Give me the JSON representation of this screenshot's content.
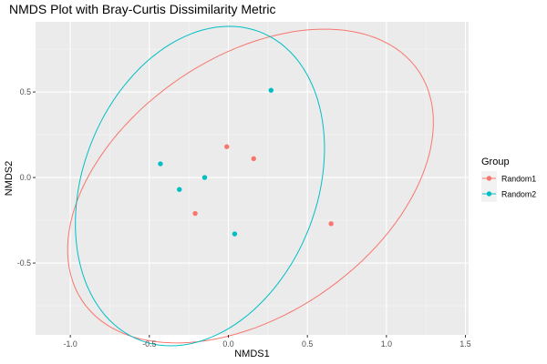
{
  "chart_data": {
    "type": "scatter",
    "title": "NMDS Plot with Bray-Curtis Dissimilarity Metric",
    "xlabel": "NMDS1",
    "ylabel": "NMDS2",
    "xlim": [
      -1.22,
      1.52
    ],
    "ylim": [
      -0.92,
      0.91
    ],
    "x_ticks": [
      -1.0,
      -0.5,
      0.0,
      0.5,
      1.0,
      1.5
    ],
    "x_tick_labels": [
      "-1.0",
      "-0.5",
      "0.0",
      "0.5",
      "1.0",
      "1.5"
    ],
    "y_ticks": [
      -0.5,
      0.0,
      0.5
    ],
    "y_tick_labels": [
      "-0.5",
      "0.0",
      "0.5"
    ],
    "grid": true,
    "legend": {
      "title": "Group",
      "position": "right"
    },
    "series": [
      {
        "name": "Random1",
        "color": "#F8766D",
        "points": [
          {
            "x": -0.01,
            "y": 0.18
          },
          {
            "x": 0.16,
            "y": 0.11
          },
          {
            "x": -0.21,
            "y": -0.21
          },
          {
            "x": 0.65,
            "y": -0.27
          }
        ],
        "ellipse": {
          "center": [
            0.14,
            -0.05
          ],
          "semi_axes": [
            1.26,
            0.77
          ],
          "rotation_deg": 30
        }
      },
      {
        "name": "Random2",
        "color": "#00BFC4",
        "points": [
          {
            "x": -0.43,
            "y": 0.08
          },
          {
            "x": -0.31,
            "y": -0.07
          },
          {
            "x": -0.15,
            "y": 0.0
          },
          {
            "x": 0.04,
            "y": -0.33
          },
          {
            "x": 0.27,
            "y": 0.51
          }
        ],
        "ellipse": {
          "center": [
            -0.18,
            -0.05
          ],
          "semi_axes": [
            0.98,
            0.73
          ],
          "rotation_deg": 63
        }
      }
    ]
  }
}
